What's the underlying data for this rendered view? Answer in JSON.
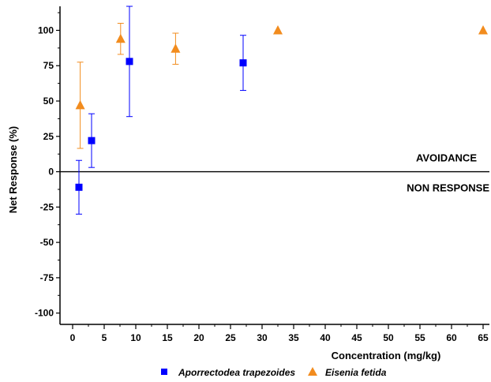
{
  "chart_data": {
    "type": "scatter",
    "xlabel": "Concentration (mg/kg)",
    "ylabel": "Net Response (%)",
    "xlim": [
      -2,
      66
    ],
    "ylim": [
      -108,
      117
    ],
    "x_ticks": [
      "0",
      "5",
      "10",
      "15",
      "20",
      "25",
      "30",
      "35",
      "40",
      "45",
      "50",
      "55",
      "60",
      "65"
    ],
    "y_ticks": [
      "-100",
      "-75",
      "-50",
      "-25",
      "0",
      "25",
      "50",
      "75",
      "100"
    ],
    "reference_line": 0,
    "annotations": [
      "AVOIDANCE",
      "NON RESPONSE"
    ],
    "legend_position": "bottom",
    "series": [
      {
        "name": "Aporrectodea trapezoides",
        "color": "#0000ff",
        "marker": "square",
        "points": [
          {
            "x": 1,
            "y": -11,
            "err": 19
          },
          {
            "x": 3,
            "y": 22,
            "err": 19
          },
          {
            "x": 9,
            "y": 78,
            "err": 39
          },
          {
            "x": 27,
            "y": 77,
            "err": 19.5
          }
        ]
      },
      {
        "name": "Eisenia fetida",
        "color": "#f28c1e",
        "marker": "triangle",
        "points": [
          {
            "x": 1.2,
            "y": 47,
            "err": 30.5
          },
          {
            "x": 7.6,
            "y": 94,
            "err": 11
          },
          {
            "x": 16.3,
            "y": 87,
            "err": 11
          },
          {
            "x": 32.5,
            "y": 100,
            "err": 0
          },
          {
            "x": 65,
            "y": 100,
            "err": 0
          }
        ]
      }
    ]
  }
}
